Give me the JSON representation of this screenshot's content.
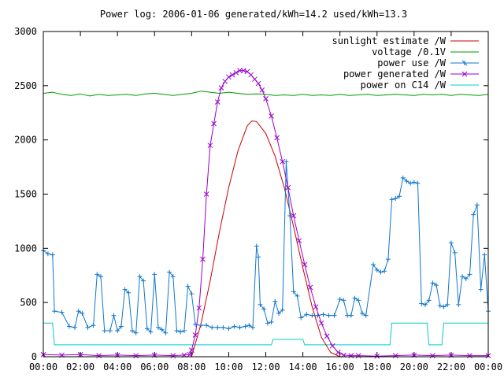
{
  "chart_data": {
    "type": "line",
    "title": "Power log: 2006-01-06 generated/kWh=14.2 used/kWh=13.3",
    "xlabel": "",
    "ylabel": "",
    "xlim": [
      "00:00",
      "24:00"
    ],
    "ylim": [
      0,
      3000
    ],
    "x_tick_labels": [
      "00:00",
      "02:00",
      "04:00",
      "06:00",
      "08:00",
      "10:00",
      "12:00",
      "14:00",
      "16:00",
      "18:00",
      "20:00",
      "22:00",
      "00:00"
    ],
    "x_tick_hours": [
      0,
      2,
      4,
      6,
      8,
      10,
      12,
      14,
      16,
      18,
      20,
      22,
      24
    ],
    "y_ticks": [
      0,
      500,
      1000,
      1500,
      2000,
      2500,
      3000
    ],
    "legend_position": "top-right",
    "grid": false,
    "series": [
      {
        "name": "sunlight estimate /W",
        "color": "#cc0000",
        "marker": "none",
        "points": [
          [
            8.0,
            0
          ],
          [
            8.5,
            300
          ],
          [
            9.0,
            700
          ],
          [
            9.5,
            1150
          ],
          [
            10.0,
            1560
          ],
          [
            10.5,
            1900
          ],
          [
            11.0,
            2130
          ],
          [
            11.25,
            2175
          ],
          [
            11.5,
            2170
          ],
          [
            12.0,
            2060
          ],
          [
            12.5,
            1850
          ],
          [
            13.0,
            1560
          ],
          [
            13.5,
            1200
          ],
          [
            14.0,
            820
          ],
          [
            14.5,
            460
          ],
          [
            15.0,
            180
          ],
          [
            15.5,
            40
          ],
          [
            16.0,
            0
          ]
        ]
      },
      {
        "name": "voltage /0.1V",
        "color": "#009900",
        "marker": "none",
        "points": [
          [
            0.0,
            2430
          ],
          [
            0.5,
            2440
          ],
          [
            1.0,
            2420
          ],
          [
            1.5,
            2410
          ],
          [
            2.0,
            2425
          ],
          [
            2.5,
            2405
          ],
          [
            3.0,
            2420
          ],
          [
            3.5,
            2410
          ],
          [
            4.0,
            2415
          ],
          [
            4.5,
            2420
          ],
          [
            5.0,
            2410
          ],
          [
            5.5,
            2425
          ],
          [
            6.0,
            2430
          ],
          [
            6.5,
            2420
          ],
          [
            7.0,
            2410
          ],
          [
            7.5,
            2420
          ],
          [
            8.0,
            2430
          ],
          [
            8.5,
            2450
          ],
          [
            9.0,
            2440
          ],
          [
            9.5,
            2430
          ],
          [
            10.0,
            2440
          ],
          [
            10.5,
            2430
          ],
          [
            11.0,
            2420
          ],
          [
            11.5,
            2425
          ],
          [
            12.0,
            2420
          ],
          [
            12.5,
            2410
          ],
          [
            13.0,
            2415
          ],
          [
            13.5,
            2410
          ],
          [
            14.0,
            2420
          ],
          [
            14.5,
            2410
          ],
          [
            15.0,
            2415
          ],
          [
            15.5,
            2410
          ],
          [
            16.0,
            2420
          ],
          [
            16.5,
            2410
          ],
          [
            17.0,
            2415
          ],
          [
            17.5,
            2420
          ],
          [
            18.0,
            2410
          ],
          [
            18.5,
            2415
          ],
          [
            19.0,
            2420
          ],
          [
            19.5,
            2415
          ],
          [
            20.0,
            2410
          ],
          [
            20.5,
            2420
          ],
          [
            21.0,
            2415
          ],
          [
            21.5,
            2420
          ],
          [
            22.0,
            2410
          ],
          [
            22.5,
            2420
          ],
          [
            23.0,
            2415
          ],
          [
            23.5,
            2410
          ],
          [
            24.0,
            2420
          ]
        ]
      },
      {
        "name": "power use /W",
        "color": "#1177cc",
        "marker": "plus",
        "points": [
          [
            0.0,
            980
          ],
          [
            0.25,
            950
          ],
          [
            0.5,
            940
          ],
          [
            0.6,
            420
          ],
          [
            1.0,
            410
          ],
          [
            1.4,
            280
          ],
          [
            1.7,
            270
          ],
          [
            1.9,
            420
          ],
          [
            2.1,
            400
          ],
          [
            2.4,
            270
          ],
          [
            2.7,
            290
          ],
          [
            2.9,
            760
          ],
          [
            3.1,
            740
          ],
          [
            3.3,
            240
          ],
          [
            3.6,
            240
          ],
          [
            3.8,
            380
          ],
          [
            4.0,
            240
          ],
          [
            4.2,
            280
          ],
          [
            4.4,
            620
          ],
          [
            4.6,
            590
          ],
          [
            4.8,
            240
          ],
          [
            5.0,
            220
          ],
          [
            5.2,
            740
          ],
          [
            5.4,
            700
          ],
          [
            5.6,
            260
          ],
          [
            5.8,
            230
          ],
          [
            6.0,
            760
          ],
          [
            6.2,
            270
          ],
          [
            6.4,
            250
          ],
          [
            6.6,
            220
          ],
          [
            6.8,
            780
          ],
          [
            7.0,
            740
          ],
          [
            7.2,
            240
          ],
          [
            7.4,
            230
          ],
          [
            7.6,
            240
          ],
          [
            7.8,
            650
          ],
          [
            8.0,
            580
          ],
          [
            8.2,
            300
          ],
          [
            8.5,
            290
          ],
          [
            8.8,
            290
          ],
          [
            9.1,
            270
          ],
          [
            9.4,
            270
          ],
          [
            9.7,
            270
          ],
          [
            10.0,
            260
          ],
          [
            10.3,
            280
          ],
          [
            10.6,
            270
          ],
          [
            10.9,
            280
          ],
          [
            11.1,
            290
          ],
          [
            11.3,
            270
          ],
          [
            11.5,
            1020
          ],
          [
            11.6,
            920
          ],
          [
            11.7,
            480
          ],
          [
            11.9,
            440
          ],
          [
            12.1,
            310
          ],
          [
            12.3,
            320
          ],
          [
            12.5,
            510
          ],
          [
            12.7,
            400
          ],
          [
            12.9,
            430
          ],
          [
            13.1,
            1800
          ],
          [
            13.3,
            1300
          ],
          [
            13.5,
            600
          ],
          [
            13.7,
            560
          ],
          [
            13.9,
            360
          ],
          [
            14.2,
            390
          ],
          [
            14.5,
            380
          ],
          [
            14.8,
            380
          ],
          [
            15.1,
            390
          ],
          [
            15.4,
            380
          ],
          [
            15.7,
            380
          ],
          [
            16.0,
            530
          ],
          [
            16.2,
            520
          ],
          [
            16.4,
            380
          ],
          [
            16.6,
            380
          ],
          [
            16.8,
            540
          ],
          [
            17.0,
            520
          ],
          [
            17.2,
            400
          ],
          [
            17.4,
            380
          ],
          [
            17.8,
            850
          ],
          [
            18.0,
            800
          ],
          [
            18.2,
            780
          ],
          [
            18.4,
            790
          ],
          [
            18.6,
            900
          ],
          [
            18.8,
            1450
          ],
          [
            19.0,
            1460
          ],
          [
            19.2,
            1480
          ],
          [
            19.4,
            1650
          ],
          [
            19.6,
            1620
          ],
          [
            19.8,
            1600
          ],
          [
            20.0,
            1610
          ],
          [
            20.2,
            1600
          ],
          [
            20.4,
            490
          ],
          [
            20.6,
            480
          ],
          [
            20.8,
            520
          ],
          [
            21.0,
            680
          ],
          [
            21.2,
            660
          ],
          [
            21.4,
            470
          ],
          [
            21.6,
            460
          ],
          [
            21.8,
            480
          ],
          [
            22.0,
            1050
          ],
          [
            22.2,
            960
          ],
          [
            22.4,
            480
          ],
          [
            22.6,
            740
          ],
          [
            22.8,
            720
          ],
          [
            23.0,
            760
          ],
          [
            23.2,
            1310
          ],
          [
            23.4,
            1400
          ],
          [
            23.6,
            620
          ],
          [
            23.8,
            940
          ],
          [
            24.0,
            420
          ]
        ]
      },
      {
        "name": "power generated /W",
        "color": "#9900cc",
        "marker": "cross",
        "points": [
          [
            0.0,
            20
          ],
          [
            1.0,
            15
          ],
          [
            2.0,
            20
          ],
          [
            3.0,
            10
          ],
          [
            4.0,
            15
          ],
          [
            5.0,
            10
          ],
          [
            6.0,
            15
          ],
          [
            7.0,
            10
          ],
          [
            7.6,
            15
          ],
          [
            7.9,
            20
          ],
          [
            8.0,
            60
          ],
          [
            8.2,
            200
          ],
          [
            8.4,
            450
          ],
          [
            8.6,
            900
          ],
          [
            8.8,
            1500
          ],
          [
            9.0,
            1950
          ],
          [
            9.2,
            2150
          ],
          [
            9.4,
            2350
          ],
          [
            9.6,
            2480
          ],
          [
            9.8,
            2540
          ],
          [
            10.0,
            2580
          ],
          [
            10.2,
            2600
          ],
          [
            10.4,
            2620
          ],
          [
            10.6,
            2640
          ],
          [
            10.8,
            2640
          ],
          [
            11.0,
            2630
          ],
          [
            11.2,
            2600
          ],
          [
            11.4,
            2560
          ],
          [
            11.6,
            2520
          ],
          [
            11.8,
            2460
          ],
          [
            12.0,
            2380
          ],
          [
            12.3,
            2220
          ],
          [
            12.6,
            2020
          ],
          [
            12.9,
            1800
          ],
          [
            13.2,
            1560
          ],
          [
            13.5,
            1300
          ],
          [
            13.8,
            1070
          ],
          [
            14.1,
            850
          ],
          [
            14.4,
            640
          ],
          [
            14.7,
            460
          ],
          [
            15.0,
            310
          ],
          [
            15.3,
            190
          ],
          [
            15.6,
            100
          ],
          [
            15.9,
            40
          ],
          [
            16.2,
            15
          ],
          [
            16.6,
            10
          ],
          [
            17.0,
            10
          ],
          [
            18.0,
            5
          ],
          [
            19.0,
            10
          ],
          [
            20.0,
            15
          ],
          [
            21.0,
            10
          ],
          [
            22.0,
            15
          ],
          [
            23.0,
            10
          ],
          [
            24.0,
            10
          ]
        ]
      },
      {
        "name": "power on C14 /W",
        "color": "#00cccc",
        "marker": "none",
        "points": [
          [
            0.0,
            310
          ],
          [
            0.5,
            310
          ],
          [
            0.6,
            110
          ],
          [
            12.3,
            110
          ],
          [
            12.4,
            160
          ],
          [
            14.0,
            160
          ],
          [
            14.1,
            110
          ],
          [
            18.7,
            110
          ],
          [
            18.8,
            310
          ],
          [
            20.7,
            310
          ],
          [
            20.8,
            110
          ],
          [
            21.5,
            110
          ],
          [
            21.6,
            310
          ],
          [
            24.0,
            310
          ]
        ]
      }
    ]
  }
}
